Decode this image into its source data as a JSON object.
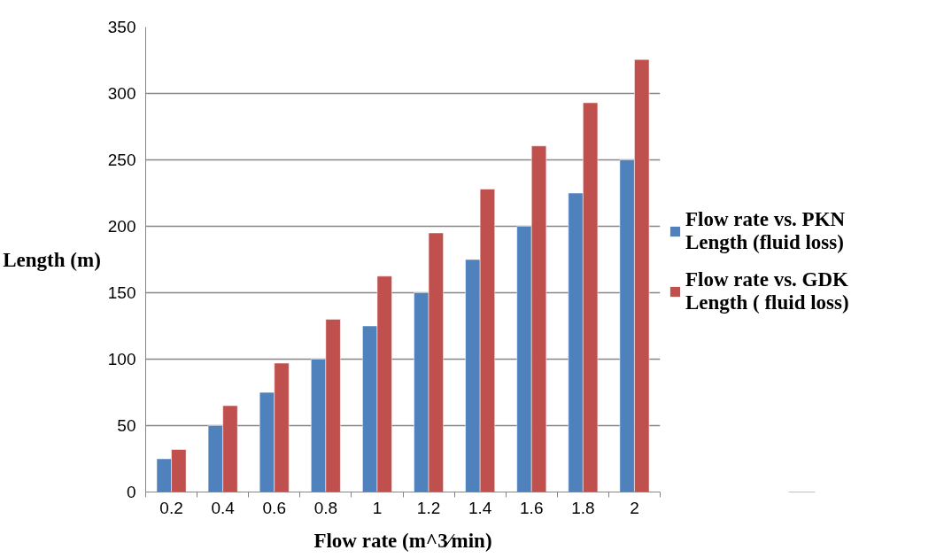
{
  "chart_data": {
    "type": "bar",
    "xlabel": "Flow rate (m^3⁄min)",
    "ylabel": "Length (m)",
    "categories": [
      "0.2",
      "0.4",
      "0.6",
      "0.8",
      "1",
      "1.2",
      "1.4",
      "1.6",
      "1.8",
      "2"
    ],
    "series": [
      {
        "name": "Flow rate vs. PKN Length (fluid loss)",
        "color": "#4f81bd",
        "values": [
          25,
          50,
          75,
          100,
          125,
          150,
          175,
          200,
          225,
          250
        ]
      },
      {
        "name": "Flow rate vs. GDK Length ( fluid loss)",
        "color": "#c0504d",
        "values": [
          32,
          65,
          97,
          130,
          162.5,
          195,
          228,
          260.5,
          293,
          325.5
        ]
      }
    ],
    "ylim": [
      0,
      350
    ],
    "yticks": [
      0,
      50,
      100,
      150,
      200,
      250,
      300,
      350
    ],
    "grid": "y",
    "legend": "right"
  }
}
